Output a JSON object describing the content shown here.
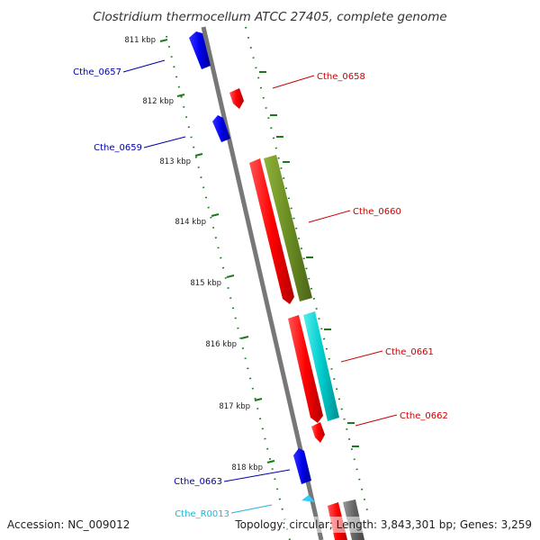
{
  "title": "Clostridium thermocellum ATCC 27405, complete genome",
  "footer": {
    "accession": "Accession: NC_009012",
    "stats": "Topology: circular; Length: 3,843,301 bp; Genes: 3,259"
  },
  "ticks": [
    "811 kbp",
    "812 kbp",
    "813 kbp",
    "814 kbp",
    "815 kbp",
    "816 kbp",
    "817 kbp",
    "818 kbp"
  ],
  "genes": [
    {
      "id": "Cthe_0657",
      "label": "Cthe_0657",
      "strand": "-",
      "color": "#0000cc"
    },
    {
      "id": "Cthe_0658",
      "label": "Cthe_0658",
      "strand": "+",
      "color": "#cc0000"
    },
    {
      "id": "Cthe_0659",
      "label": "Cthe_0659",
      "strand": "-",
      "color": "#0000cc"
    },
    {
      "id": "Cthe_0660",
      "label": "Cthe_0660",
      "strand": "+",
      "color": "#cc0000"
    },
    {
      "id": "Cthe_0661",
      "label": "Cthe_0661",
      "strand": "+",
      "color": "#cc0000"
    },
    {
      "id": "Cthe_0662",
      "label": "Cthe_0662",
      "strand": "+",
      "color": "#cc0000"
    },
    {
      "id": "Cthe_0663",
      "label": "Cthe_0663",
      "strand": "-",
      "color": "#0000aa"
    },
    {
      "id": "Cthe_R0013",
      "label": "Cthe_R0013",
      "strand": "-",
      "color": "#1fb5d8"
    }
  ],
  "colors": {
    "backbone": "#777777",
    "forward_cds": "#ff0000",
    "reverse_cds": "#0000ee",
    "trna": "#33ccff",
    "cog_olive": "#6b8e23",
    "cog_cyan": "#00cccc",
    "gc_skew": "#1a7a1a",
    "dark_grey_feature": "#666666"
  }
}
